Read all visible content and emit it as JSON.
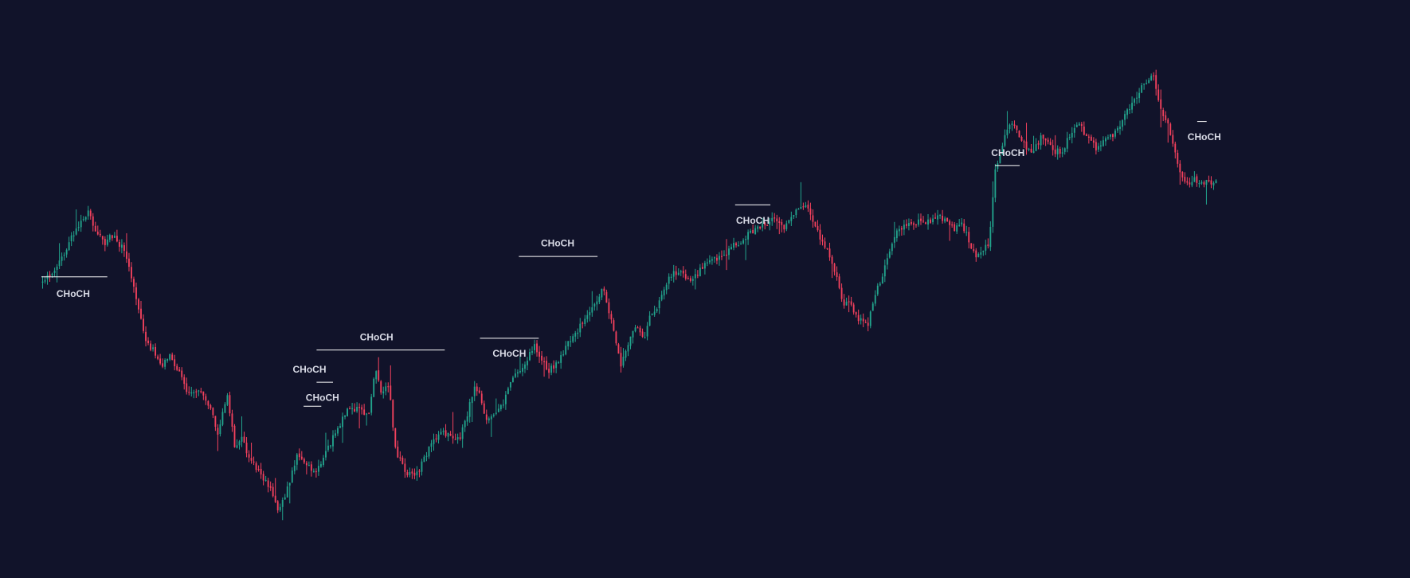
{
  "theme": {
    "background": "#11132a",
    "bull_color": "#22a38c",
    "bear_color": "#f2415d",
    "marker_line_color": "#ffffff",
    "marker_text_color": "#d9dbe6"
  },
  "chart_data": {
    "type": "candlestick",
    "title": "",
    "xlabel": "",
    "ylabel": "",
    "grid": false,
    "legend": "none",
    "x_range": [
      0,
      1
    ],
    "y_range": [
      0,
      1
    ],
    "anchors": [
      [
        0.0,
        0.478
      ],
      [
        0.012,
        0.45
      ],
      [
        0.022,
        0.408
      ],
      [
        0.03,
        0.37
      ],
      [
        0.04,
        0.338
      ],
      [
        0.045,
        0.372
      ],
      [
        0.054,
        0.402
      ],
      [
        0.06,
        0.385
      ],
      [
        0.07,
        0.412
      ],
      [
        0.075,
        0.447
      ],
      [
        0.082,
        0.525
      ],
      [
        0.09,
        0.598
      ],
      [
        0.095,
        0.61
      ],
      [
        0.102,
        0.643
      ],
      [
        0.11,
        0.62
      ],
      [
        0.118,
        0.66
      ],
      [
        0.125,
        0.695
      ],
      [
        0.135,
        0.69
      ],
      [
        0.145,
        0.735
      ],
      [
        0.15,
        0.77
      ],
      [
        0.158,
        0.7
      ],
      [
        0.165,
        0.805
      ],
      [
        0.17,
        0.782
      ],
      [
        0.178,
        0.825
      ],
      [
        0.186,
        0.849
      ],
      [
        0.195,
        0.886
      ],
      [
        0.202,
        0.925
      ],
      [
        0.21,
        0.876
      ],
      [
        0.218,
        0.815
      ],
      [
        0.227,
        0.84
      ],
      [
        0.232,
        0.848
      ],
      [
        0.237,
        0.835
      ],
      [
        0.245,
        0.796
      ],
      [
        0.255,
        0.75
      ],
      [
        0.262,
        0.72
      ],
      [
        0.27,
        0.728
      ],
      [
        0.278,
        0.738
      ],
      [
        0.284,
        0.65
      ],
      [
        0.29,
        0.7
      ],
      [
        0.296,
        0.672
      ],
      [
        0.3,
        0.8
      ],
      [
        0.31,
        0.85
      ],
      [
        0.318,
        0.86
      ],
      [
        0.324,
        0.83
      ],
      [
        0.33,
        0.8
      ],
      [
        0.34,
        0.77
      ],
      [
        0.348,
        0.778
      ],
      [
        0.355,
        0.785
      ],
      [
        0.362,
        0.74
      ],
      [
        0.368,
        0.68
      ],
      [
        0.373,
        0.7
      ],
      [
        0.378,
        0.745
      ],
      [
        0.385,
        0.74
      ],
      [
        0.392,
        0.72
      ],
      [
        0.4,
        0.67
      ],
      [
        0.41,
        0.64
      ],
      [
        0.42,
        0.6
      ],
      [
        0.425,
        0.63
      ],
      [
        0.432,
        0.65
      ],
      [
        0.44,
        0.63
      ],
      [
        0.447,
        0.6
      ],
      [
        0.455,
        0.58
      ],
      [
        0.462,
        0.545
      ],
      [
        0.47,
        0.52
      ],
      [
        0.478,
        0.49
      ],
      [
        0.488,
        0.585
      ],
      [
        0.493,
        0.645
      ],
      [
        0.498,
        0.6
      ],
      [
        0.505,
        0.56
      ],
      [
        0.512,
        0.59
      ],
      [
        0.518,
        0.54
      ],
      [
        0.525,
        0.52
      ],
      [
        0.532,
        0.475
      ],
      [
        0.538,
        0.46
      ],
      [
        0.545,
        0.455
      ],
      [
        0.552,
        0.48
      ],
      [
        0.56,
        0.455
      ],
      [
        0.567,
        0.432
      ],
      [
        0.575,
        0.43
      ],
      [
        0.582,
        0.423
      ],
      [
        0.588,
        0.4
      ],
      [
        0.595,
        0.402
      ],
      [
        0.602,
        0.38
      ],
      [
        0.61,
        0.37
      ],
      [
        0.617,
        0.36
      ],
      [
        0.625,
        0.355
      ],
      [
        0.632,
        0.375
      ],
      [
        0.637,
        0.35
      ],
      [
        0.645,
        0.335
      ],
      [
        0.65,
        0.327
      ],
      [
        0.655,
        0.352
      ],
      [
        0.66,
        0.38
      ],
      [
        0.664,
        0.395
      ],
      [
        0.67,
        0.425
      ],
      [
        0.677,
        0.47
      ],
      [
        0.682,
        0.52
      ],
      [
        0.687,
        0.51
      ],
      [
        0.693,
        0.545
      ],
      [
        0.698,
        0.555
      ],
      [
        0.703,
        0.56
      ],
      [
        0.708,
        0.505
      ],
      [
        0.714,
        0.47
      ],
      [
        0.72,
        0.43
      ],
      [
        0.728,
        0.37
      ],
      [
        0.736,
        0.368
      ],
      [
        0.745,
        0.358
      ],
      [
        0.752,
        0.36
      ],
      [
        0.758,
        0.355
      ],
      [
        0.765,
        0.35
      ],
      [
        0.772,
        0.365
      ],
      [
        0.777,
        0.373
      ],
      [
        0.782,
        0.36
      ],
      [
        0.788,
        0.39
      ],
      [
        0.794,
        0.425
      ],
      [
        0.8,
        0.412
      ],
      [
        0.806,
        0.4
      ],
      [
        0.811,
        0.255
      ],
      [
        0.816,
        0.225
      ],
      [
        0.82,
        0.19
      ],
      [
        0.825,
        0.165
      ],
      [
        0.831,
        0.185
      ],
      [
        0.838,
        0.22
      ],
      [
        0.844,
        0.218
      ],
      [
        0.85,
        0.195
      ],
      [
        0.856,
        0.198
      ],
      [
        0.862,
        0.222
      ],
      [
        0.868,
        0.22
      ],
      [
        0.876,
        0.185
      ],
      [
        0.883,
        0.17
      ],
      [
        0.89,
        0.195
      ],
      [
        0.897,
        0.215
      ],
      [
        0.903,
        0.203
      ],
      [
        0.91,
        0.19
      ],
      [
        0.917,
        0.175
      ],
      [
        0.923,
        0.14
      ],
      [
        0.93,
        0.12
      ],
      [
        0.935,
        0.095
      ],
      [
        0.94,
        0.082
      ],
      [
        0.946,
        0.077
      ],
      [
        0.95,
        0.12
      ],
      [
        0.954,
        0.15
      ],
      [
        0.959,
        0.173
      ],
      [
        0.964,
        0.225
      ],
      [
        0.968,
        0.265
      ],
      [
        0.972,
        0.275
      ],
      [
        0.976,
        0.29
      ],
      [
        0.98,
        0.276
      ],
      [
        0.985,
        0.283
      ]
    ],
    "markers": [
      {
        "label": "CHoCH"
      },
      {
        "label": "CHoCH"
      },
      {
        "label": "CHoCH"
      },
      {
        "label": "CHoCH"
      },
      {
        "label": "CHoCH"
      },
      {
        "label": "CHoCH"
      },
      {
        "label": "CHoCH"
      },
      {
        "label": "CHoCH"
      },
      {
        "label": "CHoCH"
      }
    ]
  }
}
